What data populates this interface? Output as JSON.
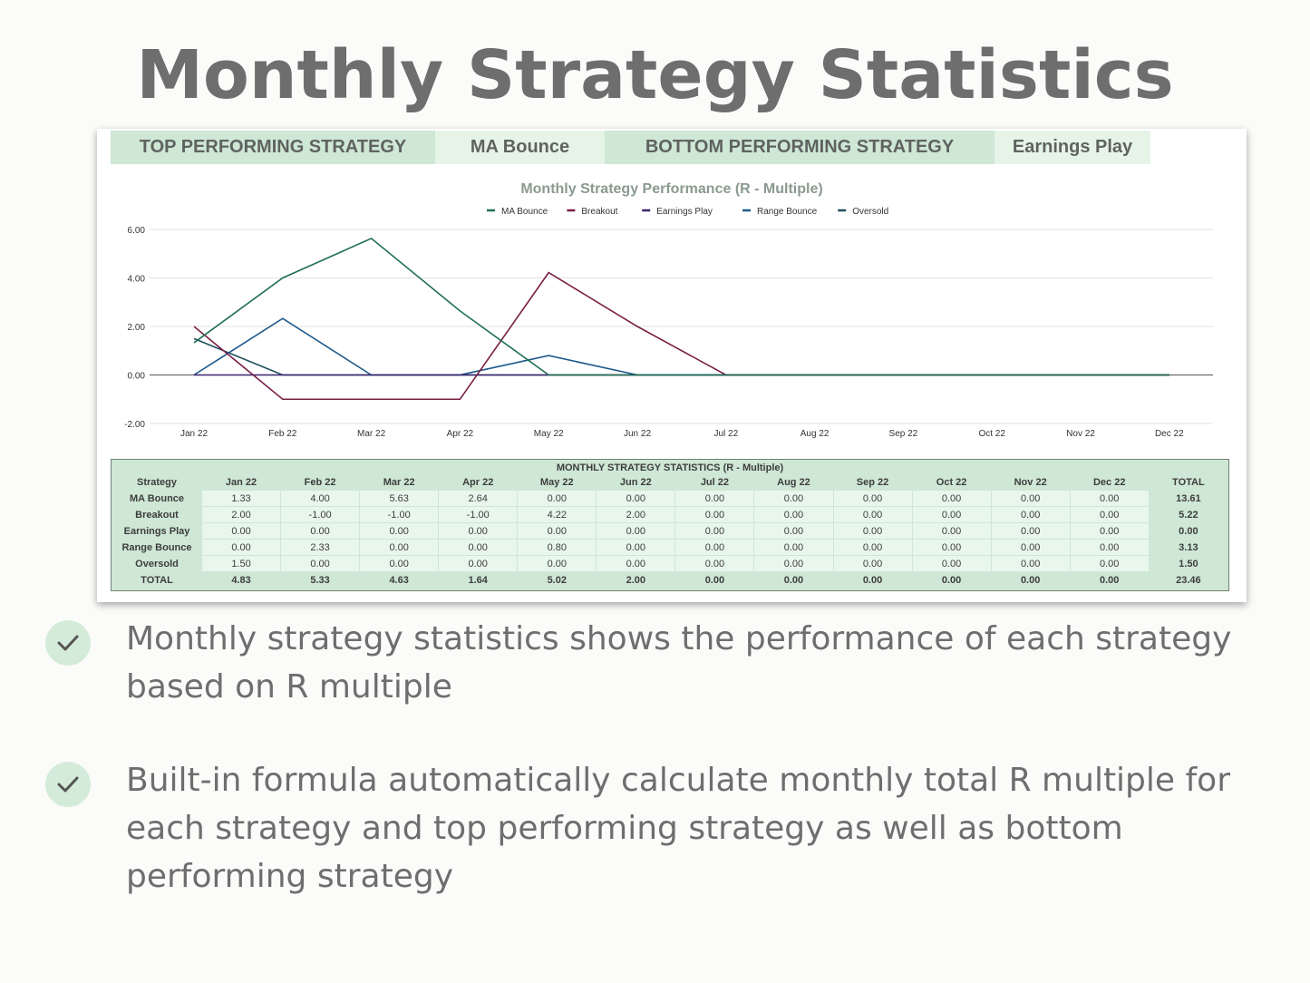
{
  "page": {
    "title": "Monthly Strategy Statistics"
  },
  "banners": {
    "top_label": "TOP PERFORMING STRATEGY",
    "top_value": "MA Bounce",
    "bottom_label": "BOTTOM PERFORMING STRATEGY",
    "bottom_value": "Earnings Play"
  },
  "chart_data": {
    "type": "line",
    "title": "Monthly Strategy Performance (R - Multiple)",
    "categories": [
      "Jan 22",
      "Feb 22",
      "Mar 22",
      "Apr 22",
      "May 22",
      "Jun 22",
      "Jul 22",
      "Aug 22",
      "Sep 22",
      "Oct 22",
      "Nov 22",
      "Dec 22"
    ],
    "ylim": [
      -2,
      6
    ],
    "yticks": [
      -2,
      0,
      2,
      4,
      6
    ],
    "ytick_labels": [
      "-2.00",
      "0.00",
      "2.00",
      "4.00",
      "6.00"
    ],
    "grid": true,
    "legend_position": "top",
    "series": [
      {
        "name": "MA Bounce",
        "color": "#1e6f50",
        "values": [
          1.33,
          4.0,
          5.63,
          2.64,
          0.0,
          0.0,
          0.0,
          0.0,
          0.0,
          0.0,
          0.0,
          0.0
        ]
      },
      {
        "name": "Breakout",
        "color": "#7a1f45",
        "values": [
          2.0,
          -1.0,
          -1.0,
          -1.0,
          4.22,
          2.0,
          0.0,
          0.0,
          0.0,
          0.0,
          0.0,
          0.0
        ]
      },
      {
        "name": "Earnings Play",
        "color": "#3b2370",
        "values": [
          0.0,
          0.0,
          0.0,
          0.0,
          0.0,
          0.0,
          0.0,
          0.0,
          0.0,
          0.0,
          0.0,
          0.0
        ]
      },
      {
        "name": "Range Bounce",
        "color": "#1f5a8c",
        "values": [
          0.0,
          2.33,
          0.0,
          0.0,
          0.8,
          0.0,
          0.0,
          0.0,
          0.0,
          0.0,
          0.0,
          0.0
        ]
      },
      {
        "name": "Oversold",
        "color": "#1f4f5c",
        "values": [
          1.5,
          0.0,
          0.0,
          0.0,
          0.0,
          0.0,
          0.0,
          0.0,
          0.0,
          0.0,
          0.0,
          0.0
        ]
      }
    ]
  },
  "stats_table": {
    "caption": "MONTHLY STRATEGY STATISTICS (R - Multiple)",
    "headers": [
      "Strategy",
      "Jan 22",
      "Feb 22",
      "Mar 22",
      "Apr 22",
      "May 22",
      "Jun 22",
      "Jul 22",
      "Aug 22",
      "Sep 22",
      "Oct 22",
      "Nov 22",
      "Dec 22",
      "TOTAL"
    ],
    "rows": [
      [
        "MA Bounce",
        "1.33",
        "4.00",
        "5.63",
        "2.64",
        "0.00",
        "0.00",
        "0.00",
        "0.00",
        "0.00",
        "0.00",
        "0.00",
        "0.00",
        "13.61"
      ],
      [
        "Breakout",
        "2.00",
        "-1.00",
        "-1.00",
        "-1.00",
        "4.22",
        "2.00",
        "0.00",
        "0.00",
        "0.00",
        "0.00",
        "0.00",
        "0.00",
        "5.22"
      ],
      [
        "Earnings Play",
        "0.00",
        "0.00",
        "0.00",
        "0.00",
        "0.00",
        "0.00",
        "0.00",
        "0.00",
        "0.00",
        "0.00",
        "0.00",
        "0.00",
        "0.00"
      ],
      [
        "Range Bounce",
        "0.00",
        "2.33",
        "0.00",
        "0.00",
        "0.80",
        "0.00",
        "0.00",
        "0.00",
        "0.00",
        "0.00",
        "0.00",
        "0.00",
        "3.13"
      ],
      [
        "Oversold",
        "1.50",
        "0.00",
        "0.00",
        "0.00",
        "0.00",
        "0.00",
        "0.00",
        "0.00",
        "0.00",
        "0.00",
        "0.00",
        "0.00",
        "1.50"
      ]
    ],
    "total_row": [
      "TOTAL",
      "4.83",
      "5.33",
      "4.63",
      "1.64",
      "5.02",
      "2.00",
      "0.00",
      "0.00",
      "0.00",
      "0.00",
      "0.00",
      "0.00",
      "23.46"
    ]
  },
  "bullets": [
    {
      "icon": "check-icon",
      "text": "Monthly strategy statistics shows the performance of each strategy based on R multiple"
    },
    {
      "icon": "check-icon",
      "text": "Built-in formula automatically calculate monthly total R multiple for each strategy and top performing strategy as well as bottom performing strategy"
    }
  ]
}
